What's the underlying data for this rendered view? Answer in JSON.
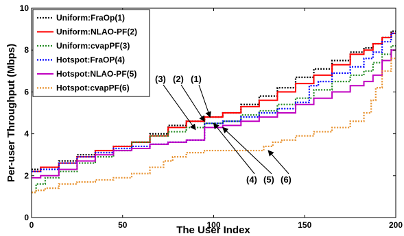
{
  "chart_data": {
    "type": "line",
    "title": "",
    "xlabel": "The User Index",
    "ylabel": "Per-user Throughput (Mbps)",
    "xlim": [
      0,
      200
    ],
    "ylim": [
      0,
      10
    ],
    "xticks": [
      0,
      50,
      100,
      150,
      200
    ],
    "yticks": [
      0,
      2,
      4,
      6,
      8,
      10
    ],
    "grid": false,
    "legend_position": "top-left",
    "series": [
      {
        "name": "Uniform:FraOp(1)",
        "color": "#000000",
        "style": "dotted",
        "x": [
          0,
          10,
          20,
          30,
          40,
          50,
          60,
          70,
          80,
          90,
          100,
          110,
          120,
          130,
          140,
          150,
          160,
          170,
          180,
          185,
          190,
          195,
          200
        ],
        "y": [
          2.3,
          2.4,
          2.7,
          3.0,
          3.2,
          3.4,
          3.6,
          4.0,
          4.4,
          4.6,
          4.8,
          5.0,
          5.4,
          5.8,
          6.2,
          6.7,
          7.1,
          7.5,
          7.9,
          8.1,
          8.3,
          8.6,
          8.9
        ]
      },
      {
        "name": "Uniform:NLAO-PF(2)",
        "color": "#ff0000",
        "style": "solid",
        "x": [
          0,
          10,
          20,
          30,
          40,
          50,
          60,
          70,
          80,
          90,
          100,
          110,
          120,
          130,
          140,
          150,
          160,
          170,
          180,
          185,
          190,
          195,
          200
        ],
        "y": [
          2.2,
          2.4,
          2.6,
          2.9,
          3.2,
          3.4,
          3.6,
          3.9,
          4.3,
          4.6,
          4.8,
          5.0,
          5.3,
          5.6,
          6.0,
          6.4,
          6.8,
          7.3,
          7.8,
          8.0,
          8.3,
          8.6,
          8.8
        ]
      },
      {
        "name": "Uniform:cvapPF(3)",
        "color": "#228b22",
        "style": "dotted",
        "x": [
          0,
          5,
          10,
          20,
          30,
          40,
          50,
          60,
          70,
          80,
          90,
          100,
          110,
          120,
          130,
          140,
          150,
          160,
          170,
          180,
          185,
          190,
          195,
          200
        ],
        "y": [
          1.2,
          1.6,
          1.9,
          2.2,
          2.6,
          2.9,
          3.2,
          3.6,
          3.9,
          4.1,
          4.3,
          4.5,
          4.6,
          4.9,
          5.1,
          5.4,
          5.7,
          6.1,
          6.5,
          6.8,
          7.0,
          7.4,
          7.8,
          8.2
        ]
      },
      {
        "name": "Hotspot:FraOP(4)",
        "color": "#0000ff",
        "style": "dotted",
        "x": [
          0,
          10,
          20,
          30,
          40,
          50,
          60,
          70,
          80,
          90,
          100,
          110,
          120,
          130,
          140,
          150,
          155,
          160,
          170,
          180,
          185,
          190,
          195,
          200
        ],
        "y": [
          2.2,
          2.3,
          2.6,
          2.9,
          3.1,
          3.3,
          3.4,
          3.5,
          3.6,
          3.7,
          4.5,
          4.6,
          4.8,
          5.0,
          5.2,
          5.5,
          6.3,
          6.5,
          6.9,
          7.2,
          7.6,
          7.9,
          8.4,
          8.8
        ]
      },
      {
        "name": "Hotspot:NLAO-PF(5)",
        "color": "#c000c0",
        "style": "solid",
        "x": [
          0,
          10,
          20,
          30,
          40,
          50,
          60,
          70,
          80,
          90,
          100,
          110,
          120,
          130,
          140,
          150,
          160,
          170,
          180,
          185,
          190,
          195,
          200
        ],
        "y": [
          1.9,
          2.0,
          2.3,
          2.7,
          3.0,
          3.2,
          3.3,
          3.5,
          3.6,
          3.7,
          4.3,
          4.4,
          4.6,
          4.8,
          5.0,
          5.4,
          5.7,
          6.0,
          6.3,
          6.5,
          6.8,
          7.5,
          8.0
        ]
      },
      {
        "name": "Hotspot:cvapPF(6)",
        "color": "#e8912e",
        "style": "dotted",
        "x": [
          0,
          5,
          10,
          20,
          30,
          40,
          50,
          60,
          70,
          75,
          80,
          90,
          100,
          110,
          120,
          125,
          130,
          135,
          140,
          150,
          160,
          170,
          180,
          185,
          188,
          190,
          195,
          200
        ],
        "y": [
          1.2,
          1.3,
          1.4,
          1.6,
          1.7,
          1.8,
          1.9,
          2.1,
          2.4,
          2.7,
          2.9,
          3.1,
          3.2,
          3.2,
          3.2,
          3.2,
          3.4,
          3.6,
          3.7,
          3.9,
          4.1,
          4.3,
          4.6,
          5.0,
          5.6,
          6.2,
          7.0,
          7.6
        ]
      }
    ],
    "annotations": [
      {
        "text": "(3)",
        "target_x": 90,
        "target_y": 4.2
      },
      {
        "text": "(2)",
        "target_x": 95,
        "target_y": 4.6
      },
      {
        "text": "(1)",
        "target_x": 98,
        "target_y": 4.8
      },
      {
        "text": "(4)",
        "target_x": 100,
        "target_y": 4.5
      },
      {
        "text": "(5)",
        "target_x": 105,
        "target_y": 4.3
      },
      {
        "text": "(6)",
        "target_x": 130,
        "target_y": 3.2
      }
    ]
  }
}
